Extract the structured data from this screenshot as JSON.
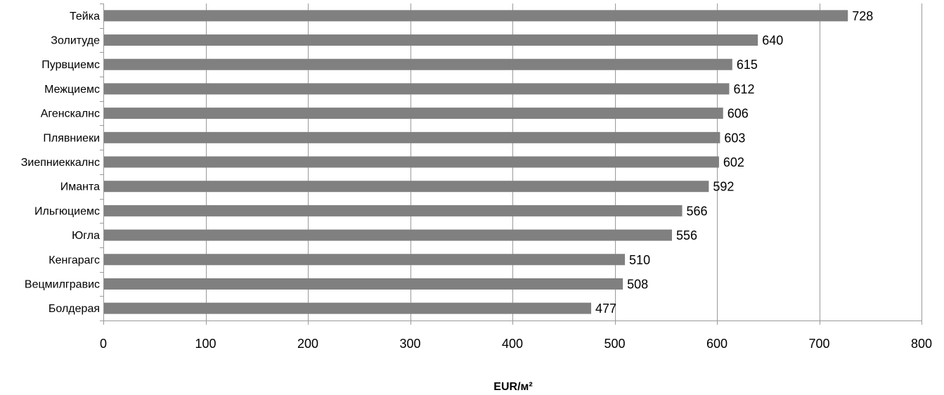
{
  "chart_data": {
    "type": "bar",
    "orientation": "horizontal",
    "categories": [
      "Тейка",
      "Золитуде",
      "Пурвциемс",
      "Межциемс",
      "Агенскалнс",
      "Плявниеки",
      "Зиепниеккалнс",
      "Иманта",
      "Ильгюциемс",
      "Югла",
      "Кенгарагс",
      "Вецмилгравис",
      "Болдерая"
    ],
    "values": [
      728,
      640,
      615,
      612,
      606,
      603,
      602,
      592,
      566,
      556,
      510,
      508,
      477
    ],
    "xlabel": "EUR/м²",
    "ylabel": "",
    "title": "",
    "xlim": [
      0,
      800
    ],
    "xticks": [
      0,
      100,
      200,
      300,
      400,
      500,
      600,
      700,
      800
    ],
    "grid": "vertical",
    "legend": "none",
    "bar_color": "#808080",
    "data_labels": true
  }
}
